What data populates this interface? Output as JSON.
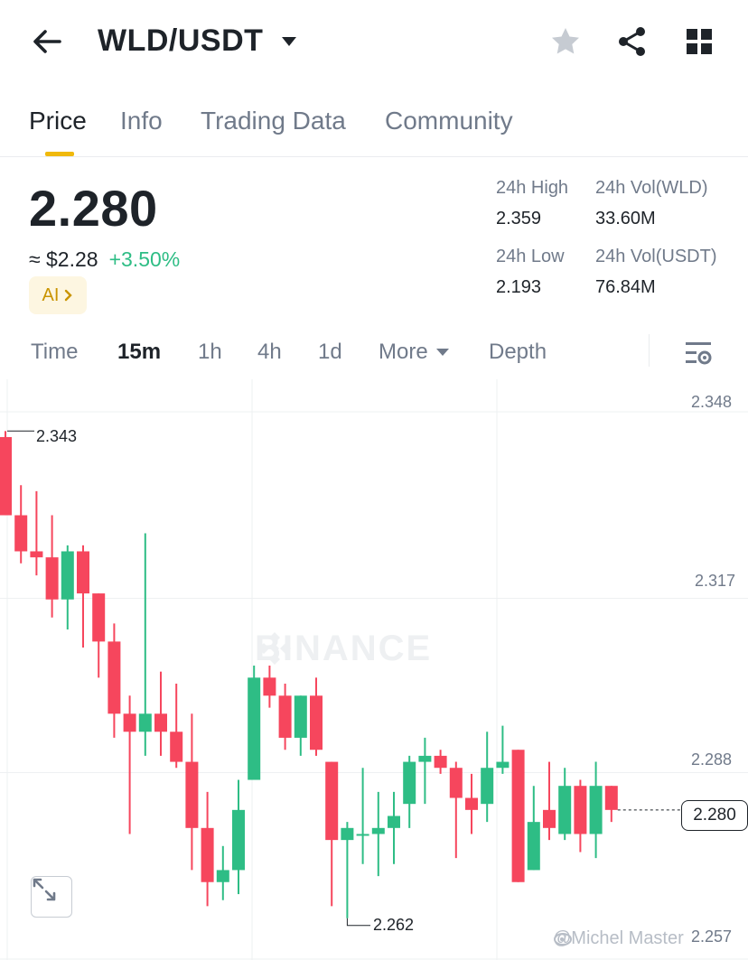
{
  "header": {
    "pair": "WLD/USDT",
    "icons": [
      "back-arrow-icon",
      "caret-down-icon",
      "star-icon",
      "share-icon",
      "grid-icon"
    ]
  },
  "tabs": [
    {
      "label": "Price",
      "active": true
    },
    {
      "label": "Info",
      "active": false
    },
    {
      "label": "Trading Data",
      "active": false
    },
    {
      "label": "Community",
      "active": false
    }
  ],
  "ticker": {
    "last_price": "2.280",
    "usd_equiv": "≈ $2.28",
    "change": "+3.50%",
    "ai_label": "AI",
    "high_label": "24h High",
    "high_value": "2.359",
    "vol_base_label": "24h Vol(WLD)",
    "vol_base_value": "33.60M",
    "low_label": "24h Low",
    "low_value": "2.193",
    "vol_quote_label": "24h Vol(USDT)",
    "vol_quote_value": "76.84M"
  },
  "intervals": [
    {
      "label": "Time",
      "active": false
    },
    {
      "label": "15m",
      "active": true
    },
    {
      "label": "1h",
      "active": false
    },
    {
      "label": "4h",
      "active": false
    },
    {
      "label": "1d",
      "active": false
    },
    {
      "label": "More",
      "active": false
    },
    {
      "label": "Depth",
      "active": false
    }
  ],
  "chart": {
    "y_ticks": [
      "2.348",
      "2.317",
      "2.288",
      "2.257"
    ],
    "last_price_tag": "2.280",
    "high_annotation": "2.343",
    "low_annotation": "2.262",
    "watermark": "BINANCE",
    "credit": "@Michel Master"
  },
  "colors": {
    "up": "#2ebd85",
    "down": "#f6465d",
    "accent": "#f0b90b"
  },
  "chart_data": {
    "type": "candlestick",
    "interval": "15m",
    "y_ticks": [
      2.348,
      2.317,
      2.288,
      2.257
    ],
    "candles": [
      {
        "o": 2.342,
        "h": 2.343,
        "l": 2.329,
        "c": 2.329
      },
      {
        "o": 2.329,
        "h": 2.334,
        "l": 2.321,
        "c": 2.323
      },
      {
        "o": 2.323,
        "h": 2.333,
        "l": 2.319,
        "c": 2.322
      },
      {
        "o": 2.322,
        "h": 2.329,
        "l": 2.312,
        "c": 2.315
      },
      {
        "o": 2.315,
        "h": 2.324,
        "l": 2.31,
        "c": 2.323
      },
      {
        "o": 2.323,
        "h": 2.324,
        "l": 2.307,
        "c": 2.316
      },
      {
        "o": 2.316,
        "h": 2.316,
        "l": 2.302,
        "c": 2.308
      },
      {
        "o": 2.308,
        "h": 2.311,
        "l": 2.292,
        "c": 2.296
      },
      {
        "o": 2.296,
        "h": 2.299,
        "l": 2.276,
        "c": 2.293
      },
      {
        "o": 2.293,
        "h": 2.326,
        "l": 2.289,
        "c": 2.296
      },
      {
        "o": 2.296,
        "h": 2.303,
        "l": 2.289,
        "c": 2.293
      },
      {
        "o": 2.293,
        "h": 2.301,
        "l": 2.287,
        "c": 2.288
      },
      {
        "o": 2.288,
        "h": 2.296,
        "l": 2.27,
        "c": 2.277
      },
      {
        "o": 2.277,
        "h": 2.283,
        "l": 2.264,
        "c": 2.268
      },
      {
        "o": 2.268,
        "h": 2.274,
        "l": 2.265,
        "c": 2.27
      },
      {
        "o": 2.27,
        "h": 2.285,
        "l": 2.266,
        "c": 2.28
      },
      {
        "o": 2.285,
        "h": 2.304,
        "l": 2.285,
        "c": 2.302
      },
      {
        "o": 2.302,
        "h": 2.304,
        "l": 2.297,
        "c": 2.299
      },
      {
        "o": 2.299,
        "h": 2.301,
        "l": 2.29,
        "c": 2.292
      },
      {
        "o": 2.292,
        "h": 2.299,
        "l": 2.289,
        "c": 2.299
      },
      {
        "o": 2.299,
        "h": 2.302,
        "l": 2.289,
        "c": 2.29
      },
      {
        "o": 2.288,
        "h": 2.288,
        "l": 2.264,
        "c": 2.275
      },
      {
        "o": 2.275,
        "h": 2.278,
        "l": 2.262,
        "c": 2.277
      },
      {
        "o": 2.276,
        "h": 2.287,
        "l": 2.271,
        "c": 2.276
      },
      {
        "o": 2.276,
        "h": 2.283,
        "l": 2.269,
        "c": 2.277
      },
      {
        "o": 2.277,
        "h": 2.283,
        "l": 2.271,
        "c": 2.279
      },
      {
        "o": 2.281,
        "h": 2.289,
        "l": 2.277,
        "c": 2.288
      },
      {
        "o": 2.288,
        "h": 2.292,
        "l": 2.281,
        "c": 2.289
      },
      {
        "o": 2.289,
        "h": 2.29,
        "l": 2.286,
        "c": 2.287
      },
      {
        "o": 2.287,
        "h": 2.288,
        "l": 2.272,
        "c": 2.282
      },
      {
        "o": 2.282,
        "h": 2.286,
        "l": 2.276,
        "c": 2.28
      },
      {
        "o": 2.281,
        "h": 2.293,
        "l": 2.278,
        "c": 2.287
      },
      {
        "o": 2.287,
        "h": 2.294,
        "l": 2.286,
        "c": 2.288
      },
      {
        "o": 2.29,
        "h": 2.29,
        "l": 2.268,
        "c": 2.268
      },
      {
        "o": 2.27,
        "h": 2.284,
        "l": 2.27,
        "c": 2.278
      },
      {
        "o": 2.28,
        "h": 2.288,
        "l": 2.275,
        "c": 2.277
      },
      {
        "o": 2.276,
        "h": 2.287,
        "l": 2.275,
        "c": 2.284
      },
      {
        "o": 2.284,
        "h": 2.285,
        "l": 2.273,
        "c": 2.276
      },
      {
        "o": 2.276,
        "h": 2.288,
        "l": 2.272,
        "c": 2.284
      },
      {
        "o": 2.284,
        "h": 2.284,
        "l": 2.278,
        "c": 2.28
      }
    ]
  }
}
